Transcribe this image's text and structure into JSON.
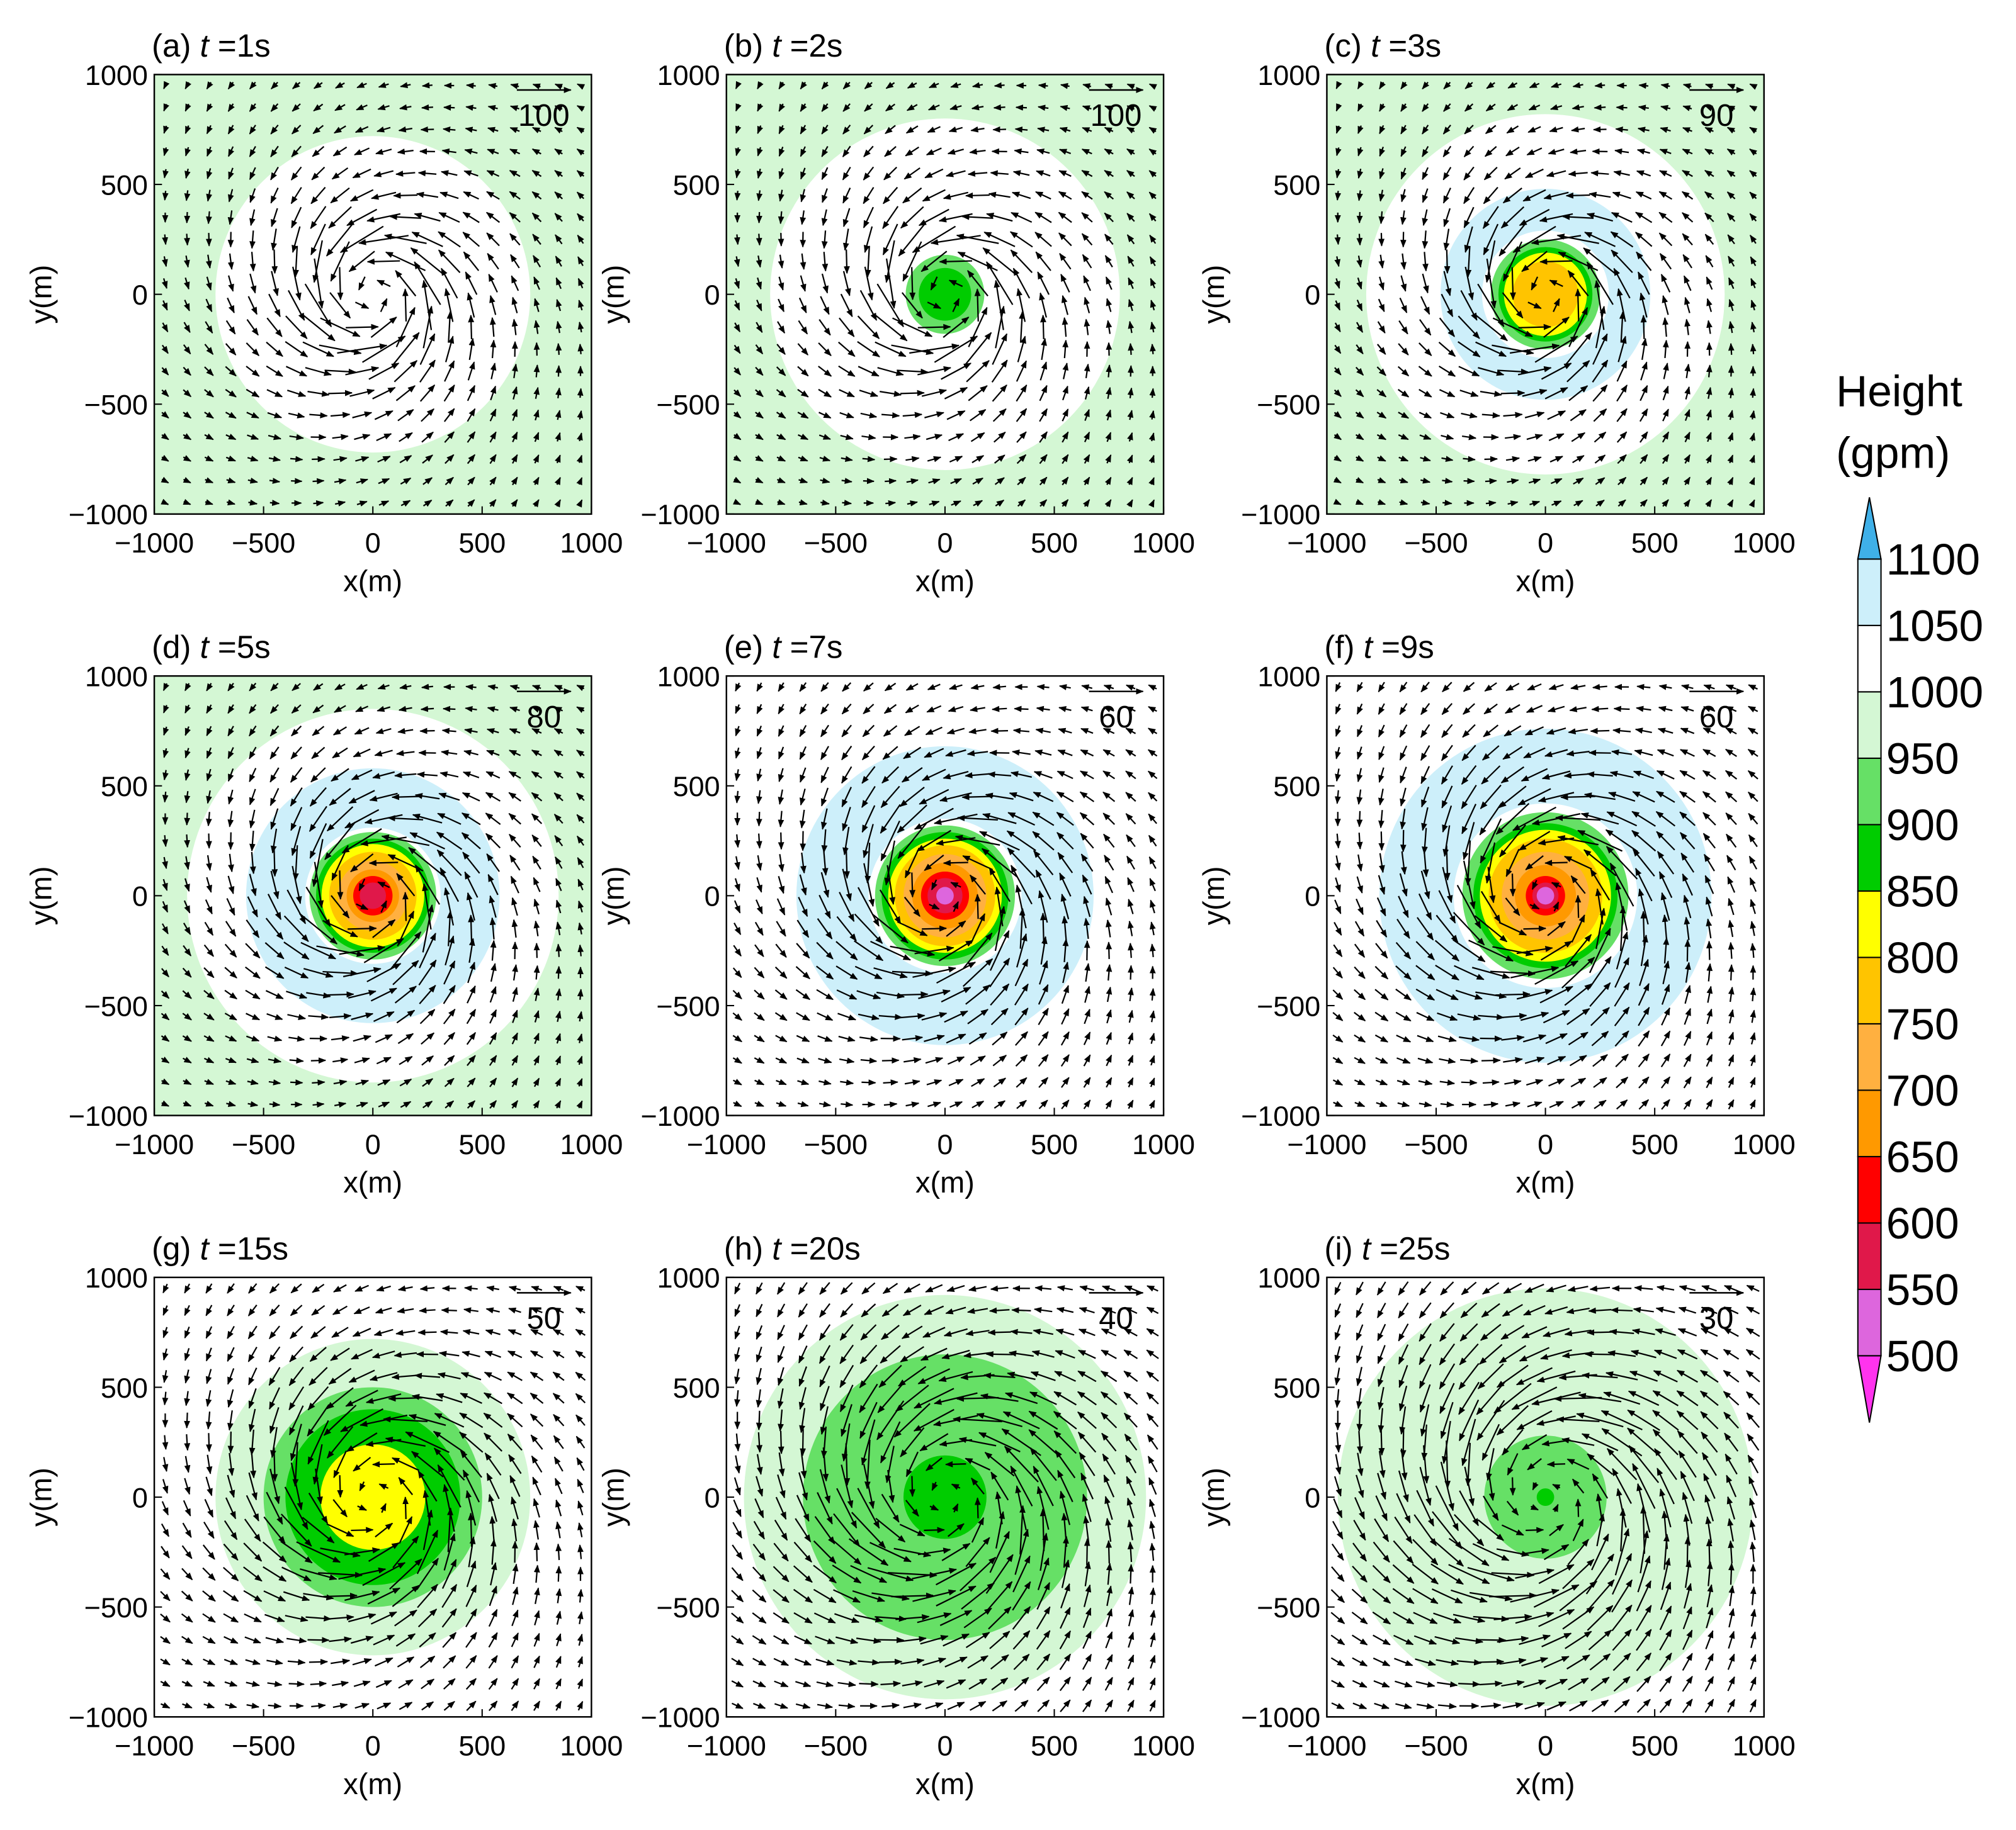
{
  "chart_data": [
    {
      "type": "contour_vector",
      "title": "(a) t =1s",
      "xlabel": "x(m)",
      "ylabel": "y(m)",
      "xlim": [
        -1000,
        1000
      ],
      "ylim": [
        -1000,
        1000
      ],
      "xticks": [
        {
          "value": -1000,
          "label": "−1000"
        },
        {
          "value": -500,
          "label": "−500"
        },
        0,
        500,
        1000
      ],
      "yticks": [
        {
          "value": -1000,
          "label": "−1000"
        },
        {
          "value": -500,
          "label": "−500"
        },
        0,
        500,
        1000
      ],
      "ref_vector": 100,
      "max_wind": 95,
      "rmw": 250,
      "fill_level": 950,
      "contours": [
        {
          "level": 1000,
          "r": 720
        }
      ]
    },
    {
      "type": "contour_vector",
      "title": "(b) t =2s",
      "xlabel": "x(m)",
      "ylabel": "y(m)",
      "xlim": [
        -1000,
        1000
      ],
      "ylim": [
        -1000,
        1000
      ],
      "xticks": [
        {
          "value": -1000,
          "label": "−1000"
        },
        {
          "value": -500,
          "label": "−500"
        },
        0,
        500,
        1000
      ],
      "yticks": [
        {
          "value": -1000,
          "label": "−1000"
        },
        {
          "value": -500,
          "label": "−500"
        },
        0,
        500,
        1000
      ],
      "ref_vector": 100,
      "max_wind": 95,
      "rmw": 250,
      "fill_level": 950,
      "contours": [
        {
          "level": 1000,
          "r": 800
        },
        {
          "level": 900,
          "r": 180
        },
        {
          "level": 850,
          "r": 120
        }
      ]
    },
    {
      "type": "contour_vector",
      "title": "(c) t =3s",
      "xlabel": "x(m)",
      "ylabel": "y(m)",
      "xlim": [
        -1000,
        1000
      ],
      "ylim": [
        -1000,
        1000
      ],
      "xticks": [
        {
          "value": -1000,
          "label": "−1000"
        },
        {
          "value": -500,
          "label": "−500"
        },
        0,
        500,
        1000
      ],
      "yticks": [
        {
          "value": -1000,
          "label": "−1000"
        },
        {
          "value": -500,
          "label": "−500"
        },
        0,
        500,
        1000
      ],
      "ref_vector": 90,
      "max_wind": 85,
      "rmw": 250,
      "fill_level": 950,
      "contours": [
        {
          "level": 1000,
          "r": 820
        },
        {
          "level": 1050,
          "r": 480
        },
        {
          "level": 1000,
          "r": 290
        },
        {
          "level": 900,
          "r": 250
        },
        {
          "level": 850,
          "r": 215
        },
        {
          "level": 800,
          "r": 190
        },
        {
          "level": 750,
          "r": 150
        }
      ]
    },
    {
      "type": "contour_vector",
      "title": "(d) t =5s",
      "xlabel": "x(m)",
      "ylabel": "y(m)",
      "xlim": [
        -1000,
        1000
      ],
      "ylim": [
        -1000,
        1000
      ],
      "xticks": [
        {
          "value": -1000,
          "label": "−1000"
        },
        {
          "value": -500,
          "label": "−500"
        },
        0,
        500,
        1000
      ],
      "yticks": [
        {
          "value": -1000,
          "label": "−1000"
        },
        {
          "value": -500,
          "label": "−500"
        },
        0,
        500,
        1000
      ],
      "ref_vector": 80,
      "max_wind": 75,
      "rmw": 280,
      "fill_level": 950,
      "contours": [
        {
          "level": 1000,
          "r": 850
        },
        {
          "level": 1050,
          "r": 580
        },
        {
          "level": 1000,
          "r": 310
        },
        {
          "level": 900,
          "r": 290
        },
        {
          "level": 850,
          "r": 260
        },
        {
          "level": 800,
          "r": 235
        },
        {
          "level": 750,
          "r": 200
        },
        {
          "level": 700,
          "r": 160
        },
        {
          "level": 650,
          "r": 120
        },
        {
          "level": 600,
          "r": 90
        },
        {
          "level": 550,
          "r": 60
        }
      ]
    },
    {
      "type": "contour_vector",
      "title": "(e) t =7s",
      "xlabel": "x(m)",
      "ylabel": "y(m)",
      "xlim": [
        -1000,
        1000
      ],
      "ylim": [
        -1000,
        1000
      ],
      "xticks": [
        {
          "value": -1000,
          "label": "−1000"
        },
        {
          "value": -500,
          "label": "−500"
        },
        0,
        500,
        1000
      ],
      "yticks": [
        {
          "value": -1000,
          "label": "−1000"
        },
        {
          "value": -500,
          "label": "−500"
        },
        0,
        500,
        1000
      ],
      "ref_vector": 60,
      "max_wind": 55,
      "rmw": 320,
      "fill_level": 1000,
      "contours": [
        {
          "level": 1050,
          "r": 680
        },
        {
          "level": 1000,
          "r": 350
        },
        {
          "level": 900,
          "r": 320
        },
        {
          "level": 850,
          "r": 290
        },
        {
          "level": 800,
          "r": 260
        },
        {
          "level": 750,
          "r": 230
        },
        {
          "level": 700,
          "r": 190
        },
        {
          "level": 650,
          "r": 150
        },
        {
          "level": 600,
          "r": 110
        },
        {
          "level": 550,
          "r": 80
        },
        {
          "level": 500,
          "r": 40
        }
      ]
    },
    {
      "type": "contour_vector",
      "title": "(f) t =9s",
      "xlabel": "x(m)",
      "ylabel": "y(m)",
      "xlim": [
        -1000,
        1000
      ],
      "ylim": [
        -1000,
        1000
      ],
      "xticks": [
        {
          "value": -1000,
          "label": "−1000"
        },
        {
          "value": -500,
          "label": "−500"
        },
        0,
        500,
        1000
      ],
      "yticks": [
        {
          "value": -1000,
          "label": "−1000"
        },
        {
          "value": -500,
          "label": "−500"
        },
        0,
        500,
        1000
      ],
      "ref_vector": 60,
      "max_wind": 55,
      "rmw": 350,
      "fill_level": 1000,
      "contours": [
        {
          "level": 1050,
          "r": 760
        },
        {
          "level": 1000,
          "r": 420
        },
        {
          "level": 900,
          "r": 380
        },
        {
          "level": 850,
          "r": 330
        },
        {
          "level": 800,
          "r": 300
        },
        {
          "level": 750,
          "r": 260
        },
        {
          "level": 700,
          "r": 200
        },
        {
          "level": 650,
          "r": 140
        },
        {
          "level": 600,
          "r": 90
        },
        {
          "level": 550,
          "r": 60
        },
        {
          "level": 500,
          "r": 40
        }
      ]
    },
    {
      "type": "contour_vector",
      "title": "(g) t =15s",
      "xlabel": "x(m)",
      "ylabel": "y(m)",
      "xlim": [
        -1000,
        1000
      ],
      "ylim": [
        -1000,
        1000
      ],
      "xticks": [
        {
          "value": -1000,
          "label": "−1000"
        },
        {
          "value": -500,
          "label": "−500"
        },
        0,
        500,
        1000
      ],
      "yticks": [
        {
          "value": -1000,
          "label": "−1000"
        },
        {
          "value": -500,
          "label": "−500"
        },
        0,
        500,
        1000
      ],
      "ref_vector": 50,
      "max_wind": 45,
      "rmw": 350,
      "fill_level": 1000,
      "contours": [
        {
          "level": 950,
          "r": 720
        },
        {
          "level": 900,
          "r": 500
        },
        {
          "level": 850,
          "r": 400
        },
        {
          "level": 800,
          "r": 240
        }
      ]
    },
    {
      "type": "contour_vector",
      "title": "(h) t =20s",
      "xlabel": "x(m)",
      "ylabel": "y(m)",
      "xlim": [
        -1000,
        1000
      ],
      "ylim": [
        -1000,
        1000
      ],
      "xticks": [
        {
          "value": -1000,
          "label": "−1000"
        },
        {
          "value": -500,
          "label": "−500"
        },
        0,
        500,
        1000
      ],
      "yticks": [
        {
          "value": -1000,
          "label": "−1000"
        },
        {
          "value": -500,
          "label": "−500"
        },
        0,
        500,
        1000
      ],
      "ref_vector": 40,
      "max_wind": 38,
      "rmw": 400,
      "fill_level": 1000,
      "contours": [
        {
          "level": 950,
          "r": 920
        },
        {
          "level": 900,
          "r": 650
        },
        {
          "level": 850,
          "r": 190
        }
      ]
    },
    {
      "type": "contour_vector",
      "title": "(i) t =25s",
      "xlabel": "x(m)",
      "ylabel": "y(m)",
      "xlim": [
        -1000,
        1000
      ],
      "ylim": [
        -1000,
        1000
      ],
      "xticks": [
        {
          "value": -1000,
          "label": "−1000"
        },
        {
          "value": -500,
          "label": "−500"
        },
        0,
        500,
        1000
      ],
      "yticks": [
        {
          "value": -1000,
          "label": "−1000"
        },
        {
          "value": -500,
          "label": "−500"
        },
        0,
        500,
        1000
      ],
      "ref_vector": 30,
      "max_wind": 28,
      "rmw": 450,
      "fill_level": 1000,
      "contours": [
        {
          "level": 950,
          "r": 950
        },
        {
          "level": 900,
          "r": 280
        },
        {
          "level": 850,
          "r": 40
        }
      ]
    },
    {
      "type": "colorbar",
      "title": "Height",
      "units": "(gpm)",
      "levels": [
        500,
        550,
        600,
        650,
        700,
        750,
        800,
        850,
        900,
        950,
        1000,
        1050,
        1100
      ],
      "colors": [
        "#ff33ee",
        "#dd66dd",
        "#e0184a",
        "#ff0000",
        "#ff9900",
        "#ffb040",
        "#ffc400",
        "#ffff00",
        "#00cc00",
        "#66e066",
        "#d4f7d4",
        "#ffffff",
        "#cdeffa",
        "#3fb0e8"
      ]
    }
  ]
}
